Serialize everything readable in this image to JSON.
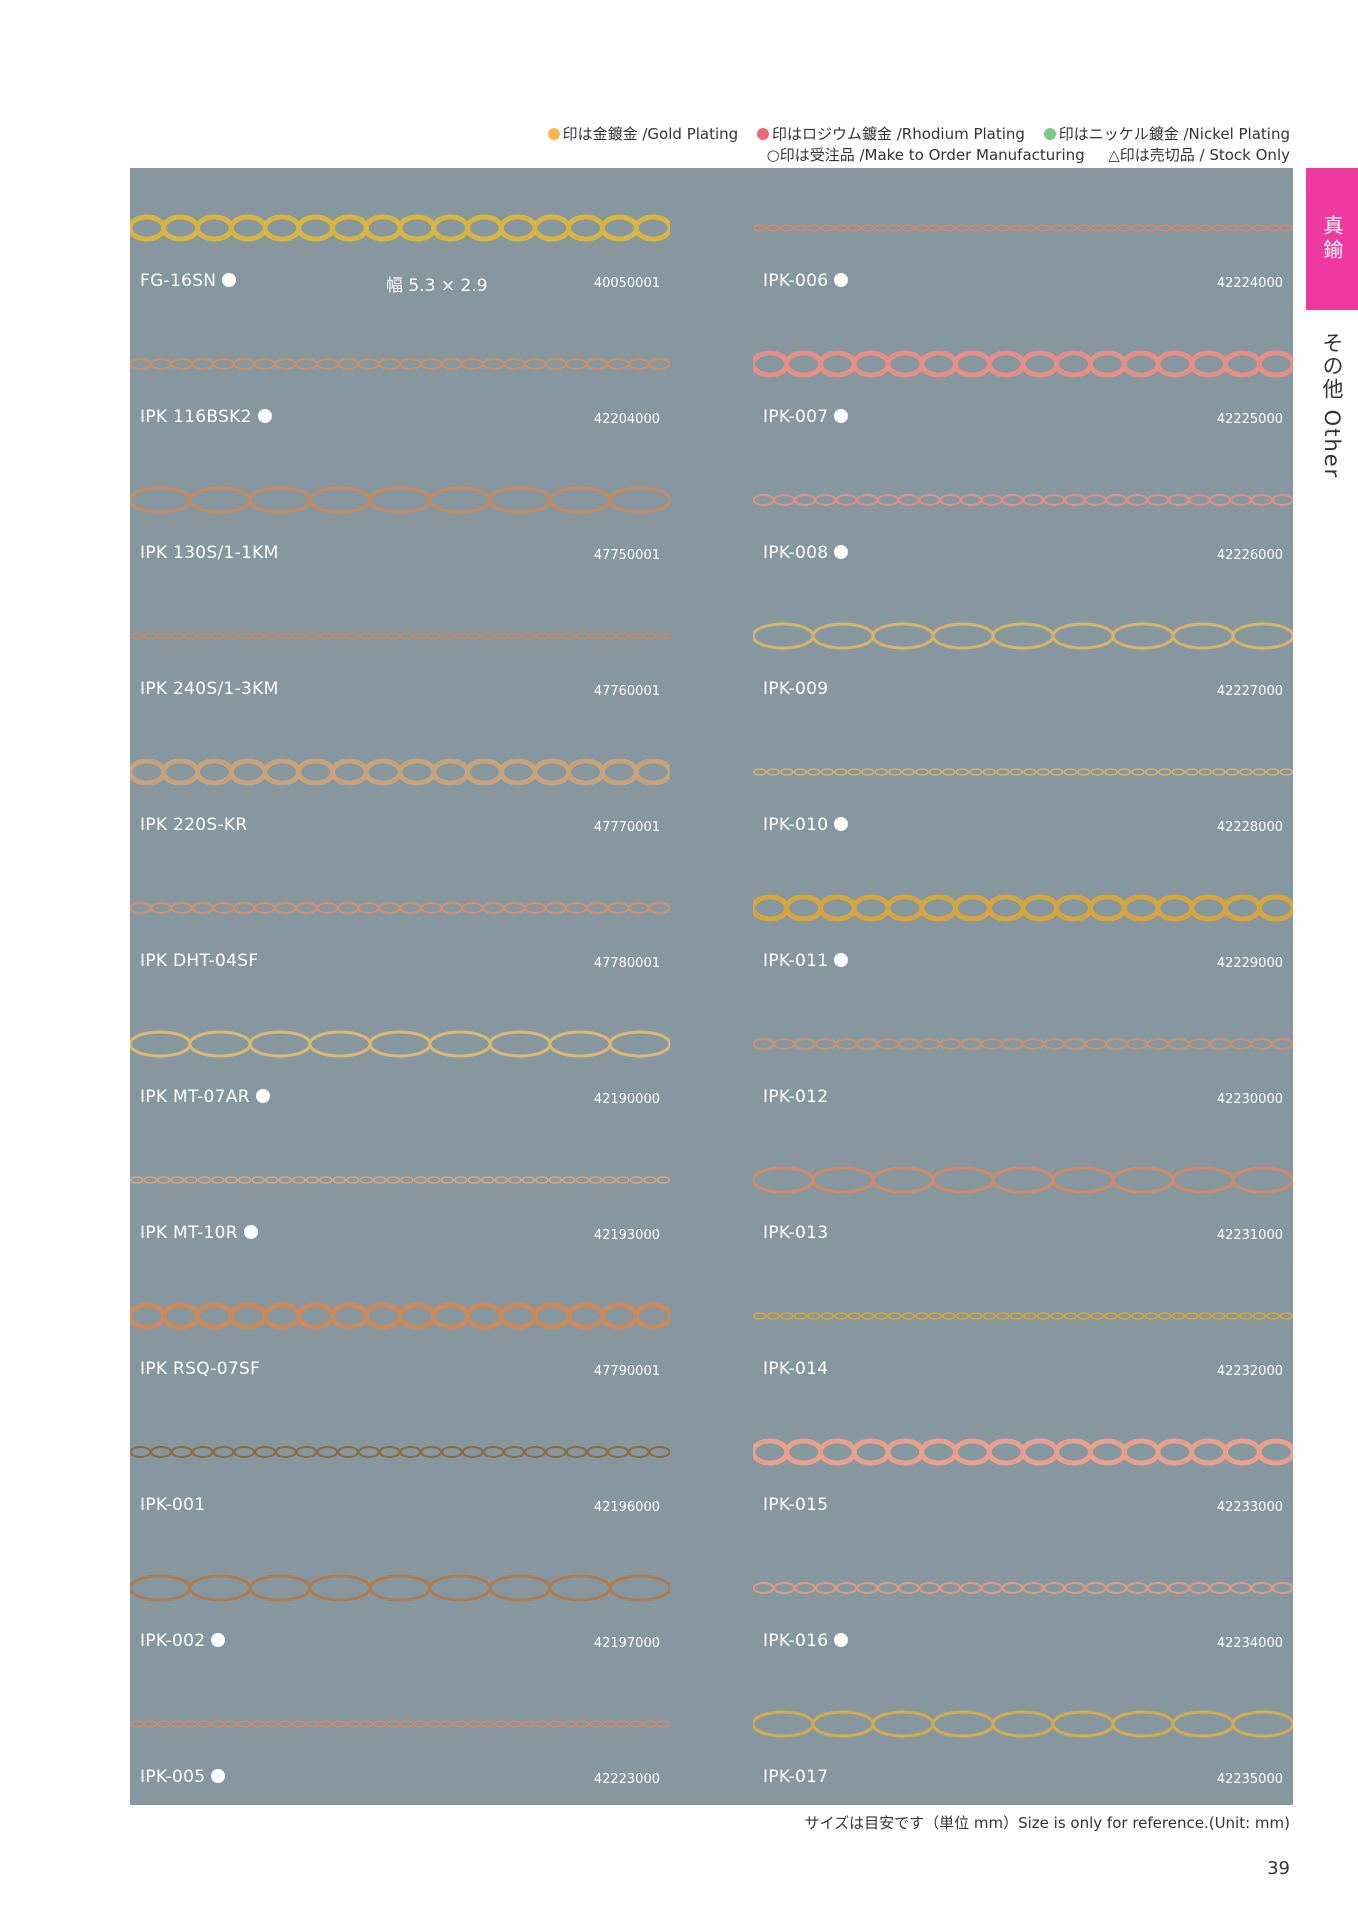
{
  "legend": {
    "gold": "印は金鍍金 /Gold Plating",
    "rhodium": "印はロジウム鍍金 /Rhodium Plating",
    "nickel": "印はニッケル鍍金 /Nickel Plating",
    "order": "○印は受注品 /Make to Order Manufacturing",
    "stock": "△印は売切品 / Stock Only",
    "gold_color": "#f6b947",
    "rhodium_color": "#ea6a77",
    "nickel_color": "#79c98a"
  },
  "tabs": {
    "material": "真鍮",
    "category": "その他 Other"
  },
  "left_items": [
    {
      "name": "FG-16SN",
      "code": "40050001",
      "size": "幅 5.3 × 2.9",
      "marker": "white-dot",
      "tone": "#d9b43e"
    },
    {
      "name": "IPK 116BSK2",
      "code": "42204000",
      "marker": "white-dot",
      "tone": "#d19062"
    },
    {
      "name": "IPK 130S/1-1KM",
      "code": "47750001",
      "tone": "#c98a5c"
    },
    {
      "name": "IPK 240S/1-3KM",
      "code": "47760001",
      "tone": "#c98a5c"
    },
    {
      "name": "IPK 220S-KR",
      "code": "47770001",
      "tone": "#c9a27a"
    },
    {
      "name": "IPK DHT-04SF",
      "code": "47780001",
      "tone": "#d88f6c"
    },
    {
      "name": "IPK MT-07AR",
      "code": "42190000",
      "marker": "white-dot",
      "tone": "#e0b870"
    },
    {
      "name": "IPK MT-10R",
      "code": "42193000",
      "marker": "white-dot",
      "tone": "#dfa576"
    },
    {
      "name": "IPK RSQ-07SF",
      "code": "47790001",
      "tone": "#c98a5c"
    },
    {
      "name": "IPK-001",
      "code": "42196000",
      "tone": "#8d6a3a"
    },
    {
      "name": "IPK-002",
      "code": "42197000",
      "marker": "white-dot",
      "tone": "#b07a4c"
    },
    {
      "name": "IPK-005",
      "code": "42223000",
      "marker": "white-dot",
      "tone": "#d98868"
    }
  ],
  "right_items": [
    {
      "name": "IPK-006",
      "code": "42224000",
      "marker": "white-dot",
      "tone": "#d98868"
    },
    {
      "name": "IPK-007",
      "code": "42225000",
      "marker": "white-dot",
      "tone": "#e58e86"
    },
    {
      "name": "IPK-008",
      "code": "42226000",
      "marker": "white-dot",
      "tone": "#e58e86"
    },
    {
      "name": "IPK-009",
      "code": "42227000",
      "tone": "#d8b468"
    },
    {
      "name": "IPK-010",
      "code": "42228000",
      "marker": "white-dot",
      "tone": "#d8b468"
    },
    {
      "name": "IPK-011",
      "code": "42229000",
      "marker": "white-dot",
      "tone": "#d6a63c"
    },
    {
      "name": "IPK-012",
      "code": "42230000",
      "tone": "#cc9270"
    },
    {
      "name": "IPK-013",
      "code": "42231000",
      "tone": "#d38a66"
    },
    {
      "name": "IPK-014",
      "code": "42232000",
      "tone": "#d9a838"
    },
    {
      "name": "IPK-015",
      "code": "42233000",
      "tone": "#e8a08c"
    },
    {
      "name": "IPK-016",
      "code": "42234000",
      "marker": "white-dot",
      "tone": "#e39a80"
    },
    {
      "name": "IPK-017",
      "code": "42235000",
      "tone": "#d6ab4e"
    }
  ],
  "footnote": "サイズは目安です（単位 mm）Size is only for reference.(Unit: mm)",
  "page_number": "39"
}
